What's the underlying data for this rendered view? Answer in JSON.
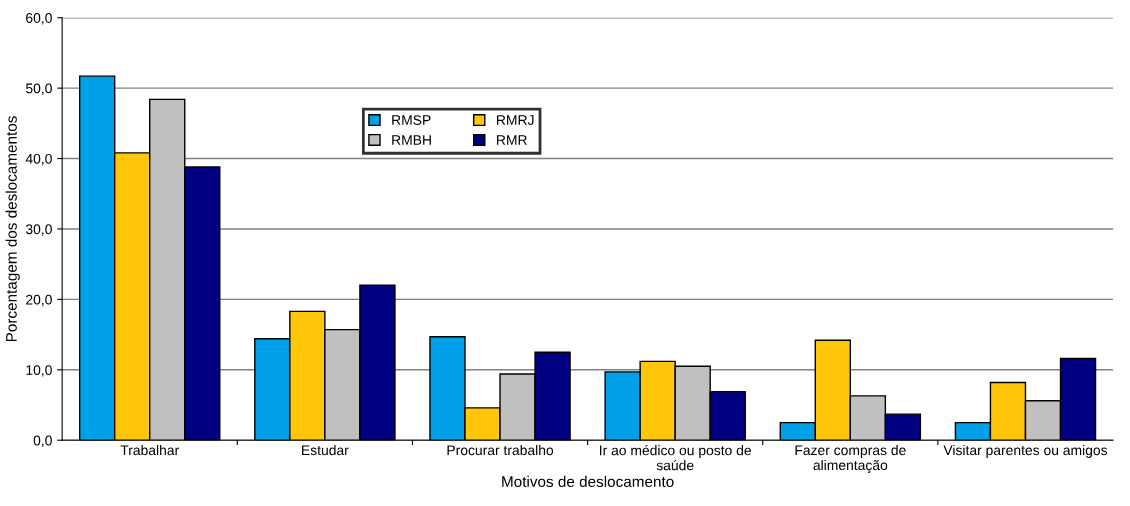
{
  "chart_data": {
    "type": "bar",
    "xlabel": "Motivos de deslocamento",
    "ylabel": "Porcentagem dos deslocamentos",
    "categories": [
      "Trabalhar",
      "Estudar",
      "Procurar trabalho",
      "Ir ao médico ou posto de saúde",
      "Fazer compras de alimentação",
      "Visitar parentes ou amigos"
    ],
    "series": [
      {
        "name": "RMSP",
        "color": "#00a0e8",
        "values": [
          51.7,
          14.4,
          14.7,
          9.7,
          2.5,
          2.5
        ]
      },
      {
        "name": "RMRJ",
        "color": "#ffc60a",
        "values": [
          40.8,
          18.3,
          4.6,
          11.2,
          14.2,
          8.2
        ]
      },
      {
        "name": "RMBH",
        "color": "#c0c0c0",
        "values": [
          48.4,
          15.7,
          9.4,
          10.5,
          6.3,
          5.6
        ]
      },
      {
        "name": "RMR",
        "color": "#000080",
        "values": [
          38.8,
          22.0,
          12.5,
          6.9,
          3.7,
          11.6
        ]
      }
    ],
    "ylim": [
      0,
      60
    ],
    "yticks": [
      {
        "value": 0,
        "label": "0,0"
      },
      {
        "value": 10,
        "label": "10,0"
      },
      {
        "value": 20,
        "label": "20,0"
      },
      {
        "value": 30,
        "label": "30,0"
      },
      {
        "value": 40,
        "label": "40,0"
      },
      {
        "value": 50,
        "label": "50,0"
      },
      {
        "value": 60,
        "label": "60,0"
      }
    ],
    "grid": "y",
    "legend": "top center"
  }
}
